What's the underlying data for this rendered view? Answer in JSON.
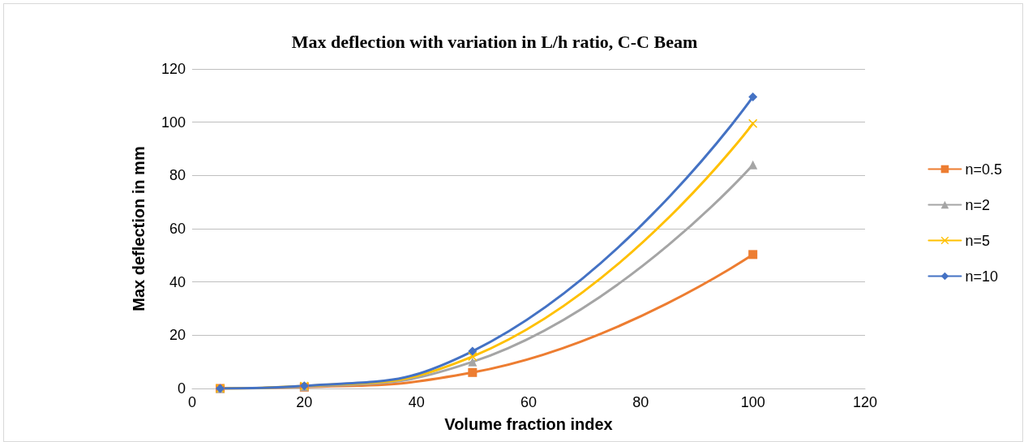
{
  "chart_data": {
    "type": "line",
    "title": "Max deflection with variation in L/h ratio, C-C Beam",
    "xlabel": "Volume fraction index",
    "ylabel": "Max deflection in mm",
    "x": [
      5,
      20,
      50,
      100
    ],
    "series": [
      {
        "name": "n=0.5",
        "color": "#ed7d31",
        "marker": "square",
        "values": [
          0,
          0.5,
          6,
          50.3
        ]
      },
      {
        "name": "n=2",
        "color": "#a5a5a5",
        "marker": "triangle",
        "values": [
          0,
          0.7,
          10,
          84
        ]
      },
      {
        "name": "n=5",
        "color": "#ffc000",
        "marker": "cross",
        "values": [
          0,
          0.9,
          12,
          99.5
        ]
      },
      {
        "name": "n=10",
        "color": "#4472c4",
        "marker": "diamond",
        "values": [
          0,
          1,
          14,
          109.5
        ]
      }
    ],
    "xlim": [
      0,
      120
    ],
    "xticks": [
      0,
      20,
      40,
      60,
      80,
      100,
      120
    ],
    "ylim": [
      0,
      120
    ],
    "yticks": [
      0,
      20,
      40,
      60,
      80,
      100,
      120
    ],
    "grid": "y",
    "legend": "right",
    "line_style": "solid"
  }
}
